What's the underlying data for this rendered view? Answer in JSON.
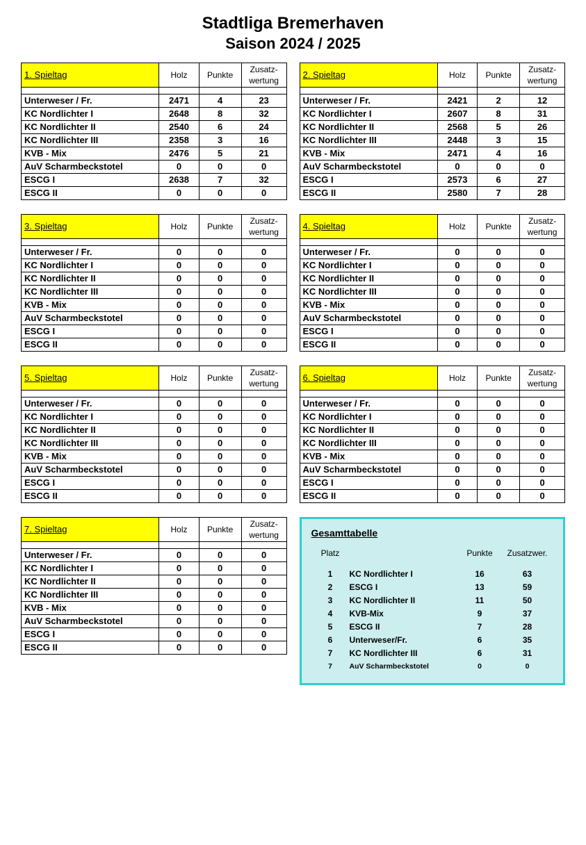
{
  "title": "Stadtliga Bremerhaven",
  "subtitle": "Saison 2024 / 2025",
  "columns": {
    "holz": "Holz",
    "punkte": "Punkte",
    "zusatz": "Zusatz-wertung"
  },
  "teams": [
    "Unterweser / Fr.",
    "KC Nordlichter I",
    "KC Nordlichter II",
    "KC Nordlichter III",
    "KVB - Mix",
    "AuV Scharmbeckstotel",
    "ESCG I",
    "ESCG II"
  ],
  "spieltage": [
    {
      "label": "1.  Spieltag",
      "rows": [
        {
          "holz": 2471,
          "punkte": 4,
          "zw": 23
        },
        {
          "holz": 2648,
          "punkte": 8,
          "zw": 32
        },
        {
          "holz": 2540,
          "punkte": 6,
          "zw": 24
        },
        {
          "holz": 2358,
          "punkte": 3,
          "zw": 16
        },
        {
          "holz": 2476,
          "punkte": 5,
          "zw": 21
        },
        {
          "holz": 0,
          "punkte": 0,
          "zw": 0
        },
        {
          "holz": 2638,
          "punkte": 7,
          "zw": 32
        },
        {
          "holz": 0,
          "punkte": 0,
          "zw": 0
        }
      ]
    },
    {
      "label": "2.  Spieltag",
      "rows": [
        {
          "holz": 2421,
          "punkte": 2,
          "zw": 12
        },
        {
          "holz": 2607,
          "punkte": 8,
          "zw": 31
        },
        {
          "holz": 2568,
          "punkte": 5,
          "zw": 26
        },
        {
          "holz": 2448,
          "punkte": 3,
          "zw": 15
        },
        {
          "holz": 2471,
          "punkte": 4,
          "zw": 16
        },
        {
          "holz": 0,
          "punkte": 0,
          "zw": 0
        },
        {
          "holz": 2573,
          "punkte": 6,
          "zw": 27
        },
        {
          "holz": 2580,
          "punkte": 7,
          "zw": 28
        }
      ]
    },
    {
      "label": "3.  Spieltag",
      "rows": [
        {
          "holz": 0,
          "punkte": 0,
          "zw": 0
        },
        {
          "holz": 0,
          "punkte": 0,
          "zw": 0
        },
        {
          "holz": 0,
          "punkte": 0,
          "zw": 0
        },
        {
          "holz": 0,
          "punkte": 0,
          "zw": 0
        },
        {
          "holz": 0,
          "punkte": 0,
          "zw": 0
        },
        {
          "holz": 0,
          "punkte": 0,
          "zw": 0
        },
        {
          "holz": 0,
          "punkte": 0,
          "zw": 0
        },
        {
          "holz": 0,
          "punkte": 0,
          "zw": 0
        }
      ]
    },
    {
      "label": "4.  Spieltag",
      "rows": [
        {
          "holz": 0,
          "punkte": 0,
          "zw": 0
        },
        {
          "holz": 0,
          "punkte": 0,
          "zw": 0
        },
        {
          "holz": 0,
          "punkte": 0,
          "zw": 0
        },
        {
          "holz": 0,
          "punkte": 0,
          "zw": 0
        },
        {
          "holz": 0,
          "punkte": 0,
          "zw": 0
        },
        {
          "holz": 0,
          "punkte": 0,
          "zw": 0
        },
        {
          "holz": 0,
          "punkte": 0,
          "zw": 0
        },
        {
          "holz": 0,
          "punkte": 0,
          "zw": 0
        }
      ]
    },
    {
      "label": "5.  Spieltag",
      "rows": [
        {
          "holz": 0,
          "punkte": 0,
          "zw": 0
        },
        {
          "holz": 0,
          "punkte": 0,
          "zw": 0
        },
        {
          "holz": 0,
          "punkte": 0,
          "zw": 0
        },
        {
          "holz": 0,
          "punkte": 0,
          "zw": 0
        },
        {
          "holz": 0,
          "punkte": 0,
          "zw": 0
        },
        {
          "holz": 0,
          "punkte": 0,
          "zw": 0
        },
        {
          "holz": 0,
          "punkte": 0,
          "zw": 0
        },
        {
          "holz": 0,
          "punkte": 0,
          "zw": 0
        }
      ]
    },
    {
      "label": "6.  Spieltag",
      "rows": [
        {
          "holz": 0,
          "punkte": 0,
          "zw": 0
        },
        {
          "holz": 0,
          "punkte": 0,
          "zw": 0
        },
        {
          "holz": 0,
          "punkte": 0,
          "zw": 0
        },
        {
          "holz": 0,
          "punkte": 0,
          "zw": 0
        },
        {
          "holz": 0,
          "punkte": 0,
          "zw": 0
        },
        {
          "holz": 0,
          "punkte": 0,
          "zw": 0
        },
        {
          "holz": 0,
          "punkte": 0,
          "zw": 0
        },
        {
          "holz": 0,
          "punkte": 0,
          "zw": 0
        }
      ]
    },
    {
      "label": "7.  Spieltag",
      "rows": [
        {
          "holz": 0,
          "punkte": 0,
          "zw": 0
        },
        {
          "holz": 0,
          "punkte": 0,
          "zw": 0
        },
        {
          "holz": 0,
          "punkte": 0,
          "zw": 0
        },
        {
          "holz": 0,
          "punkte": 0,
          "zw": 0
        },
        {
          "holz": 0,
          "punkte": 0,
          "zw": 0
        },
        {
          "holz": 0,
          "punkte": 0,
          "zw": 0
        },
        {
          "holz": 0,
          "punkte": 0,
          "zw": 0
        },
        {
          "holz": 0,
          "punkte": 0,
          "zw": 0
        }
      ]
    }
  ],
  "gesamt": {
    "title": "Gesamttabelle",
    "headers": {
      "platz": "Platz",
      "punkte": "Punkte",
      "zw": "Zusatzwer."
    },
    "rows": [
      {
        "platz": 1,
        "team": "KC Nordlichter I",
        "punkte": 16,
        "zw": 63,
        "small": false
      },
      {
        "platz": 2,
        "team": "ESCG I",
        "punkte": 13,
        "zw": 59,
        "small": false
      },
      {
        "platz": 3,
        "team": "KC Nordlichter II",
        "punkte": 11,
        "zw": 50,
        "small": false
      },
      {
        "platz": 4,
        "team": "KVB-Mix",
        "punkte": 9,
        "zw": 37,
        "small": false
      },
      {
        "platz": 5,
        "team": "ESCG II",
        "punkte": 7,
        "zw": 28,
        "small": false
      },
      {
        "platz": 6,
        "team": "Unterweser/Fr.",
        "punkte": 6,
        "zw": 35,
        "small": false
      },
      {
        "platz": 7,
        "team": "KC Nordlichter III",
        "punkte": 6,
        "zw": 31,
        "small": false
      },
      {
        "platz": 7,
        "team": "AuV Scharmbeckstotel",
        "punkte": 0,
        "zw": 0,
        "small": true
      }
    ]
  },
  "colors": {
    "highlight": "#ffff00",
    "gesamt_border": "#33cccc",
    "gesamt_bg": "#cceeee"
  }
}
